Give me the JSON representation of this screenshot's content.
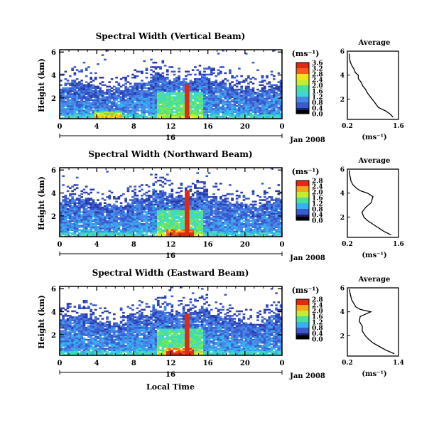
{
  "figure": {
    "xlabel": "Local Time",
    "date_label": "Jan 2008",
    "day_label": "16"
  },
  "colorbar": {
    "unit": "(ms⁻¹)",
    "colors": [
      "#1a1f6e",
      "#2a3aa8",
      "#3a5bd0",
      "#4a86e6",
      "#34b3f0",
      "#3ed8d2",
      "#49e09a",
      "#7fe84b",
      "#c5ec2e",
      "#f2e51e",
      "#f7a41a",
      "#f06019",
      "#e02a14"
    ]
  },
  "chart_data": [
    {
      "type": "heatmap",
      "title": "Spectral Width (Vertical Beam)",
      "xlabel": "",
      "ylabel": "Height (km)",
      "x_ticks": [
        "0",
        "4",
        "8",
        "12",
        "16",
        "20",
        "0"
      ],
      "y_ticks": [
        "2",
        "4",
        "6"
      ],
      "xlim": [
        0,
        24
      ],
      "ylim": [
        0.2,
        6.2
      ],
      "colorbar_ticks": [
        "0.0",
        "0.4",
        "0.8",
        "1.2",
        "1.6",
        "2.0",
        "2.4",
        "2.8",
        "3.2",
        "3.6"
      ],
      "colorbar_max": 3.6,
      "features": {
        "spike_hour": 13.8,
        "spike_top_km": 3.2,
        "hot_base_hour": 5.2,
        "echo_top_km": 3.0
      }
    },
    {
      "type": "heatmap",
      "title": "Spectral Width (Northward Beam)",
      "xlabel": "",
      "ylabel": "Height (km)",
      "x_ticks": [
        "0",
        "4",
        "8",
        "12",
        "16",
        "20",
        "0"
      ],
      "y_ticks": [
        "2",
        "4",
        "6"
      ],
      "xlim": [
        0,
        24
      ],
      "ylim": [
        0.2,
        6.2
      ],
      "colorbar_ticks": [
        "0.0",
        "0.4",
        "0.8",
        "1.2",
        "1.6",
        "2.0",
        "2.4",
        "2.8"
      ],
      "colorbar_max": 2.8,
      "features": {
        "spike_hour": 13.8,
        "spike_top_km": 4.2,
        "hot_base_hour": 13.0,
        "echo_top_km": 3.2
      }
    },
    {
      "type": "heatmap",
      "title": "Spectral Width (Eastward Beam)",
      "xlabel": "Local Time",
      "ylabel": "Height (km)",
      "x_ticks": [
        "0",
        "4",
        "8",
        "12",
        "16",
        "20",
        "0"
      ],
      "y_ticks": [
        "2",
        "4",
        "6"
      ],
      "xlim": [
        0,
        24
      ],
      "ylim": [
        0.2,
        6.2
      ],
      "colorbar_ticks": [
        "0.0",
        "0.4",
        "0.8",
        "1.2",
        "1.6",
        "2.0",
        "2.4",
        "2.8"
      ],
      "colorbar_max": 2.8,
      "features": {
        "spike_hour": 13.8,
        "spike_top_km": 3.8,
        "hot_base_hour": 13.0,
        "echo_top_km": 3.4
      }
    },
    {
      "type": "line",
      "title": "Average",
      "xlabel": "(ms⁻¹)",
      "ylabel": "",
      "x_ticks": [
        "0.2",
        "1.6"
      ],
      "y_ticks": [
        "2",
        "4",
        "6"
      ],
      "xlim": [
        0.2,
        1.6
      ],
      "ylim": [
        0.3,
        6.0
      ],
      "x": [
        1.45,
        1.35,
        1.25,
        1.05,
        0.95,
        0.85,
        0.75,
        0.7,
        0.62,
        0.58,
        0.5,
        0.5,
        0.42,
        0.38,
        0.32,
        0.28,
        0.26,
        0.25
      ],
      "y": [
        0.5,
        0.8,
        1.0,
        1.3,
        1.7,
        2.1,
        2.5,
        2.8,
        3.1,
        3.4,
        3.7,
        4.0,
        4.2,
        4.5,
        4.8,
        5.1,
        5.4,
        5.8
      ]
    },
    {
      "type": "line",
      "title": "Average",
      "xlabel": "(ms⁻¹)",
      "ylabel": "",
      "x_ticks": [
        "0.2",
        "1.6"
      ],
      "y_ticks": [
        "2",
        "4",
        "6"
      ],
      "xlim": [
        0.2,
        1.6
      ],
      "ylim": [
        0.3,
        6.0
      ],
      "x": [
        1.4,
        1.2,
        1.05,
        0.9,
        0.75,
        0.65,
        0.6,
        0.7,
        0.85,
        0.9,
        0.75,
        0.55,
        0.45,
        0.35,
        0.3,
        0.28,
        0.26,
        0.25
      ],
      "y": [
        0.5,
        0.8,
        1.1,
        1.4,
        1.7,
        2.0,
        2.4,
        2.8,
        3.2,
        3.7,
        4.0,
        4.2,
        4.4,
        4.7,
        5.0,
        5.3,
        5.6,
        5.9
      ]
    },
    {
      "type": "line",
      "title": "Average",
      "xlabel": "(ms⁻¹)",
      "ylabel": "",
      "x_ticks": [
        "0.2",
        "1.4"
      ],
      "y_ticks": [
        "2",
        "4",
        "6"
      ],
      "xlim": [
        0.2,
        1.4
      ],
      "ylim": [
        0.3,
        6.0
      ],
      "x": [
        1.3,
        1.1,
        0.95,
        0.8,
        0.7,
        0.62,
        0.55,
        0.55,
        0.48,
        0.5,
        0.75,
        0.5,
        0.4,
        0.35,
        0.3,
        0.28,
        0.26,
        0.25
      ],
      "y": [
        0.5,
        0.8,
        1.1,
        1.4,
        1.7,
        2.0,
        2.4,
        2.8,
        3.2,
        3.6,
        4.0,
        4.2,
        4.4,
        4.7,
        5.0,
        5.3,
        5.6,
        5.9
      ]
    }
  ]
}
